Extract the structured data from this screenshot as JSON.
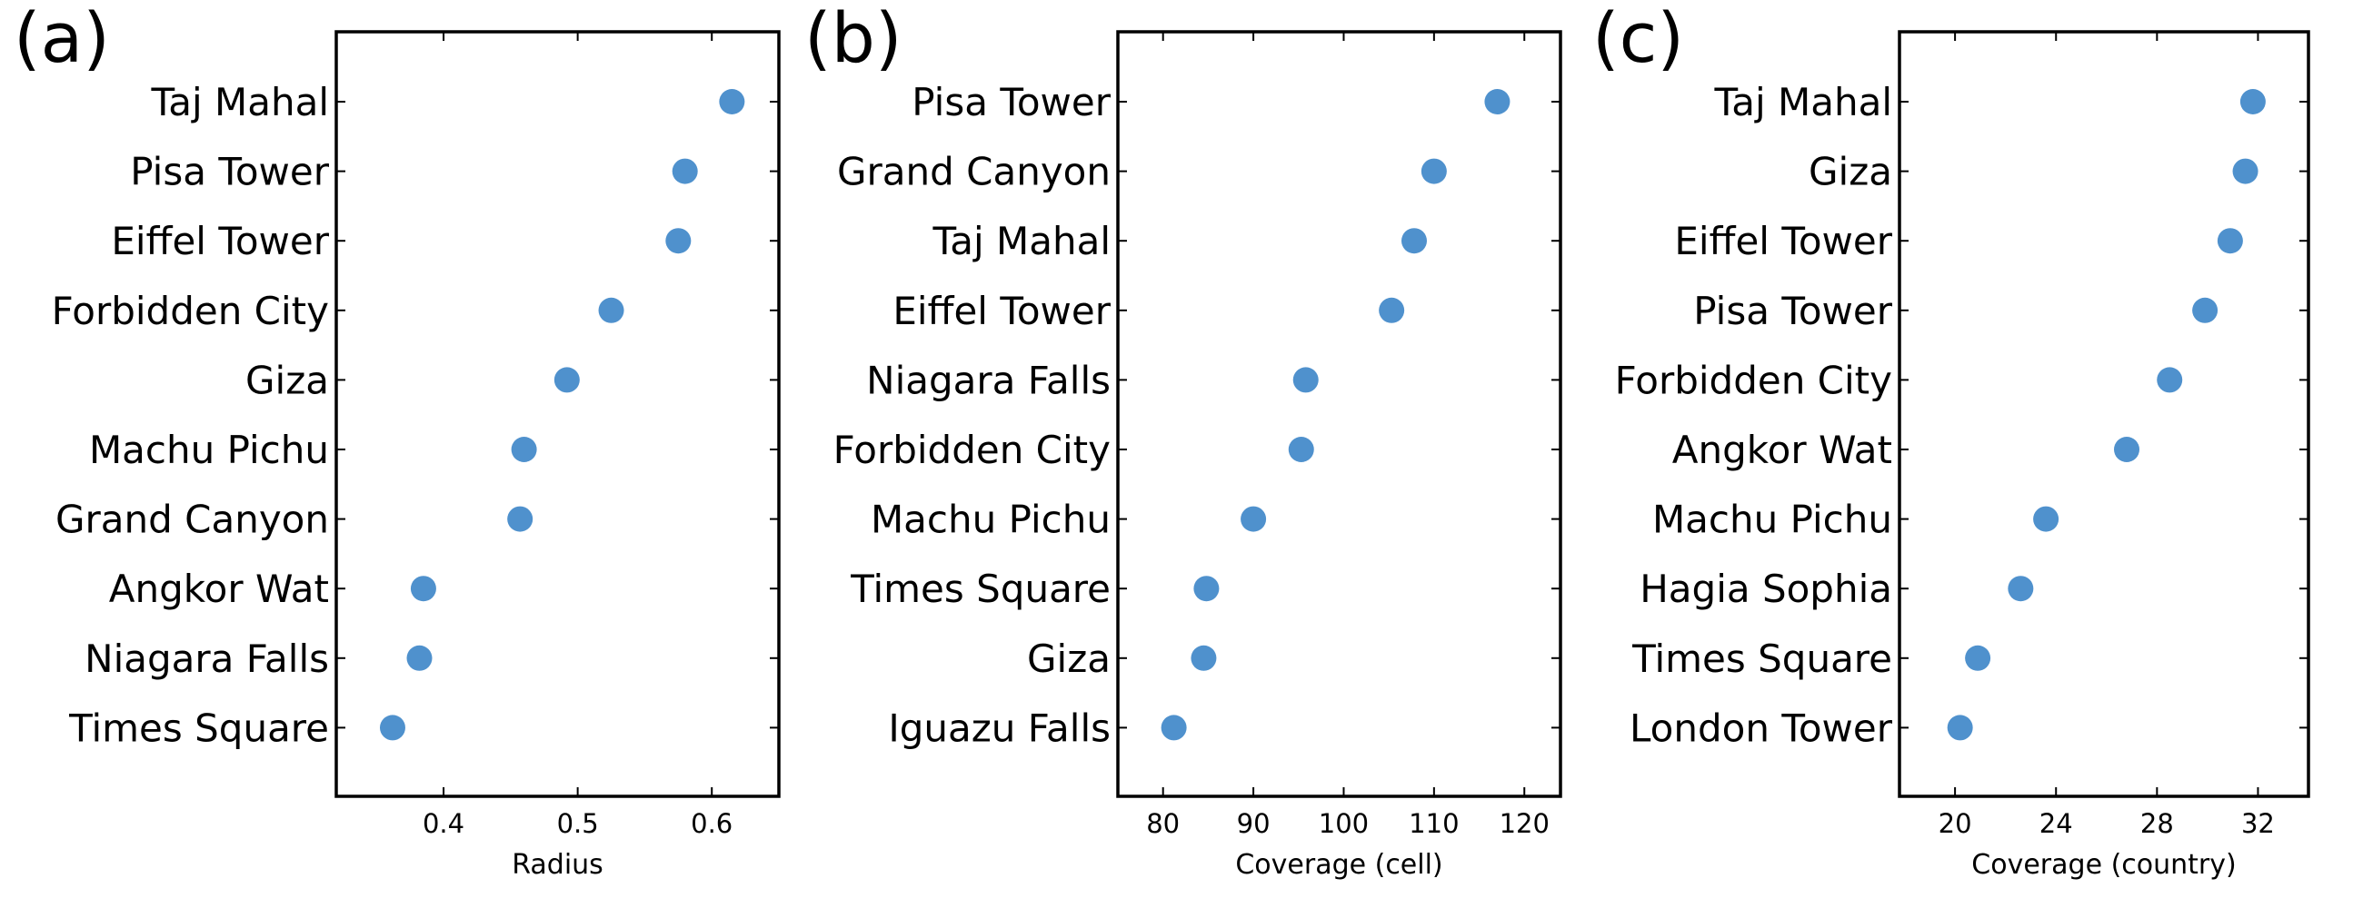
{
  "chart_data": [
    {
      "type": "scatter",
      "panel_label": "(a)",
      "xlabel": "Radius",
      "xlim": [
        0.32,
        0.65
      ],
      "xticks": [
        0.4,
        0.5,
        0.6
      ],
      "xtick_labels": [
        "0.4",
        "0.5",
        "0.6"
      ],
      "categories": [
        "Taj Mahal",
        "Pisa Tower",
        "Eiffel Tower",
        "Forbidden City",
        "Giza",
        "Machu Pichu",
        "Grand Canyon",
        "Angkor Wat",
        "Niagara Falls",
        "Times Square"
      ],
      "values": [
        0.615,
        0.58,
        0.575,
        0.525,
        0.492,
        0.46,
        0.457,
        0.385,
        0.382,
        0.362
      ],
      "grid": false,
      "color": "#4f91cd"
    },
    {
      "type": "scatter",
      "panel_label": "(b)",
      "xlabel": "Coverage (cell)",
      "xlim": [
        75,
        124
      ],
      "xticks": [
        80,
        90,
        100,
        110,
        120
      ],
      "xtick_labels": [
        "80",
        "90",
        "100",
        "110",
        "120"
      ],
      "categories": [
        "Pisa Tower",
        "Grand Canyon",
        "Taj Mahal",
        "Eiffel Tower",
        "Niagara Falls",
        "Forbidden City",
        "Machu Pichu",
        "Times Square",
        "Giza",
        "Iguazu Falls"
      ],
      "values": [
        117,
        110,
        107.8,
        105.3,
        95.8,
        95.3,
        90,
        84.8,
        84.5,
        81.2
      ],
      "grid": false,
      "color": "#4f91cd"
    },
    {
      "type": "scatter",
      "panel_label": "(c)",
      "xlabel": "Coverage (country)",
      "xlim": [
        17.8,
        34
      ],
      "xticks": [
        20,
        24,
        28,
        32
      ],
      "xtick_labels": [
        "20",
        "24",
        "28",
        "32"
      ],
      "categories": [
        "Taj Mahal",
        "Giza",
        "Eiffel Tower",
        "Pisa Tower",
        "Forbidden City",
        "Angkor Wat",
        "Machu Pichu",
        "Hagia Sophia",
        "Times Square",
        "London Tower"
      ],
      "values": [
        31.8,
        31.5,
        30.9,
        29.9,
        28.5,
        26.8,
        23.6,
        22.6,
        20.9,
        20.2
      ],
      "grid": false,
      "color": "#4f91cd"
    }
  ]
}
